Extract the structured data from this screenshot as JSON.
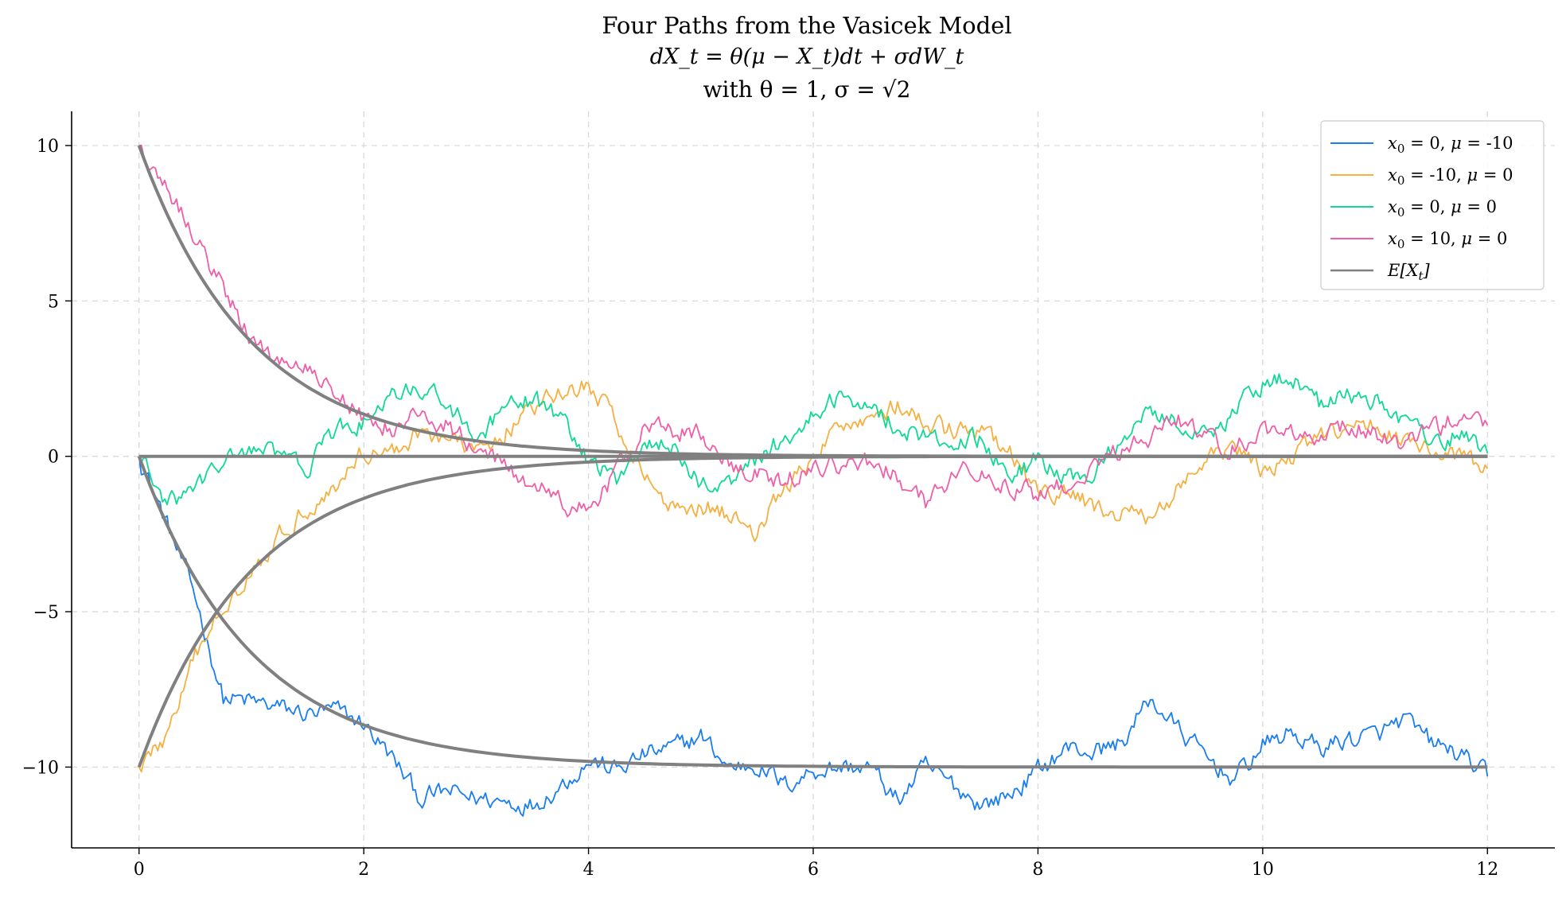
{
  "chart_data": {
    "type": "line",
    "title": "Four Paths from the Vasicek Model",
    "subtitle_math": "dX_t = θ(μ − X_t)dt + σdW_t",
    "subtitle_params": "with θ = 1, σ = √2",
    "xlabel": "",
    "ylabel": "",
    "xlim": [
      -0.6,
      12.6
    ],
    "ylim": [
      -12.6,
      11.1
    ],
    "xticks": [
      0,
      2,
      4,
      6,
      8,
      10,
      12
    ],
    "yticks": [
      -10,
      -5,
      0,
      5,
      10
    ],
    "xtick_labels": [
      "0",
      "2",
      "4",
      "6",
      "8",
      "10",
      "12"
    ],
    "ytick_labels": [
      "−10",
      "−5",
      "0",
      "5",
      "10"
    ],
    "grid": true,
    "legend_position": "top-right",
    "series": [
      {
        "name": "x0 = 0, μ = -10",
        "legend": {
          "x0": "0",
          "mu": "-10"
        },
        "color": "#1a7df0",
        "x": [
          0,
          0.25,
          0.5,
          0.75,
          1.0,
          1.25,
          1.5,
          1.75,
          2.0,
          2.25,
          2.5,
          2.75,
          3.0,
          3.25,
          3.5,
          3.75,
          4.0,
          4.25,
          4.5,
          4.75,
          5.0,
          5.25,
          5.5,
          5.75,
          6.0,
          6.25,
          6.5,
          6.75,
          7.0,
          7.25,
          7.5,
          7.75,
          8.0,
          8.25,
          8.5,
          8.75,
          9.0,
          9.25,
          9.5,
          9.75,
          10.0,
          10.25,
          10.5,
          10.75,
          11.0,
          11.25,
          11.5,
          11.75,
          12.0
        ],
        "y": [
          0,
          -2.2,
          -4.5,
          -7.8,
          -7.9,
          -8.1,
          -8.3,
          -8.2,
          -8.6,
          -9.7,
          -11.0,
          -10.8,
          -11.0,
          -11.1,
          -11.2,
          -10.6,
          -9.8,
          -10.1,
          -9.6,
          -9.4,
          -9.0,
          -10.0,
          -9.9,
          -10.6,
          -10.1,
          -10.0,
          -10.0,
          -11.1,
          -10.0,
          -10.6,
          -11.2,
          -10.9,
          -10.1,
          -9.4,
          -9.5,
          -9.2,
          -7.8,
          -8.8,
          -9.7,
          -10.4,
          -9.3,
          -8.9,
          -9.4,
          -9.1,
          -9.0,
          -8.5,
          -9.2,
          -9.6,
          -10.3
        ]
      },
      {
        "name": "x0 = -10, μ = 0",
        "legend": {
          "x0": "-10",
          "mu": "0"
        },
        "color": "#f5b041",
        "x": [
          0,
          0.25,
          0.5,
          0.75,
          1.0,
          1.25,
          1.5,
          1.75,
          2.0,
          2.25,
          2.5,
          2.75,
          3.0,
          3.25,
          3.5,
          3.75,
          4.0,
          4.25,
          4.5,
          4.75,
          5.0,
          5.25,
          5.5,
          5.75,
          6.0,
          6.25,
          6.5,
          6.75,
          7.0,
          7.25,
          7.5,
          7.75,
          8.0,
          8.25,
          8.5,
          8.75,
          9.0,
          9.25,
          9.5,
          9.75,
          10.0,
          10.25,
          10.5,
          10.75,
          11.0,
          11.25,
          11.5,
          11.75,
          12.0
        ],
        "y": [
          -10,
          -9.0,
          -6.5,
          -4.8,
          -3.6,
          -2.6,
          -1.6,
          -1.0,
          0.2,
          0.1,
          0.8,
          0.6,
          0.1,
          0.8,
          1.5,
          2.0,
          2.3,
          1.1,
          -0.6,
          -1.7,
          -1.5,
          -1.9,
          -2.4,
          -1.0,
          -0.2,
          1.1,
          1.3,
          1.6,
          1.0,
          0.8,
          0.7,
          0.1,
          -1.3,
          -1.2,
          -1.6,
          -1.9,
          -2.0,
          -1.0,
          -0.2,
          0.3,
          -0.6,
          0.0,
          0.6,
          0.8,
          1.0,
          0.6,
          0.2,
          -0.1,
          -0.4
        ]
      },
      {
        "name": "x0 = 0, μ = 0",
        "legend": {
          "x0": "0",
          "mu": "0"
        },
        "color": "#10d995",
        "x": [
          0,
          0.25,
          0.5,
          0.75,
          1.0,
          1.25,
          1.5,
          1.75,
          2.0,
          2.25,
          2.5,
          2.75,
          3.0,
          3.25,
          3.5,
          3.75,
          4.0,
          4.25,
          4.5,
          4.75,
          5.0,
          5.25,
          5.5,
          5.75,
          6.0,
          6.25,
          6.5,
          6.75,
          7.0,
          7.25,
          7.5,
          7.75,
          8.0,
          8.25,
          8.5,
          8.75,
          9.0,
          9.25,
          9.5,
          9.75,
          10.0,
          10.25,
          10.5,
          10.75,
          11.0,
          11.25,
          11.5,
          11.75,
          12.0
        ],
        "y": [
          0,
          -1.6,
          -1.0,
          -0.2,
          0.3,
          0.0,
          -0.3,
          0.8,
          1.1,
          1.8,
          2.2,
          1.8,
          0.4,
          1.5,
          1.8,
          1.3,
          -0.2,
          -0.7,
          0.5,
          0.2,
          -0.9,
          -0.8,
          -0.1,
          0.6,
          1.3,
          2.0,
          1.6,
          1.0,
          0.6,
          0.4,
          0.6,
          -0.7,
          -0.1,
          -0.8,
          -0.5,
          0.6,
          1.6,
          1.1,
          0.7,
          1.4,
          2.4,
          2.6,
          1.7,
          1.9,
          1.8,
          1.2,
          0.5,
          0.7,
          0.1
        ]
      },
      {
        "name": "x0 = 10, μ = 0",
        "legend": {
          "x0": "10",
          "mu": "0"
        },
        "color": "#ee5fa8",
        "x": [
          0,
          0.25,
          0.5,
          0.75,
          1.0,
          1.25,
          1.5,
          1.75,
          2.0,
          2.25,
          2.5,
          2.75,
          3.0,
          3.25,
          3.5,
          3.75,
          4.0,
          4.25,
          4.5,
          4.75,
          5.0,
          5.25,
          5.5,
          5.75,
          6.0,
          6.25,
          6.5,
          6.75,
          7.0,
          7.25,
          7.5,
          7.75,
          8.0,
          8.25,
          8.5,
          8.75,
          9.0,
          9.25,
          9.5,
          9.75,
          10.0,
          10.25,
          10.5,
          10.75,
          11.0,
          11.25,
          11.5,
          11.75,
          12.0
        ],
        "y": [
          10,
          8.7,
          7.1,
          5.4,
          3.7,
          3.1,
          2.8,
          2.2,
          1.2,
          0.9,
          1.4,
          1.0,
          0.2,
          -0.3,
          -0.9,
          -1.5,
          -1.8,
          -0.5,
          0.9,
          0.8,
          0.7,
          -0.3,
          -0.6,
          -0.8,
          -0.3,
          -0.3,
          -0.2,
          -0.6,
          -1.5,
          -0.6,
          -0.4,
          -0.9,
          -1.3,
          -0.9,
          -0.2,
          0.2,
          0.7,
          1.1,
          0.6,
          0.3,
          0.8,
          0.9,
          0.7,
          1.0,
          0.8,
          0.4,
          0.8,
          1.3,
          1.0
        ]
      }
    ],
    "expectation": {
      "name": "E[X_t]",
      "color": "#808080",
      "theta": 1,
      "curves": [
        {
          "x0": 0,
          "mu": -10
        },
        {
          "x0": -10,
          "mu": 0
        },
        {
          "x0": 0,
          "mu": 0
        },
        {
          "x0": 10,
          "mu": 0
        }
      ],
      "x_end": 12
    }
  }
}
